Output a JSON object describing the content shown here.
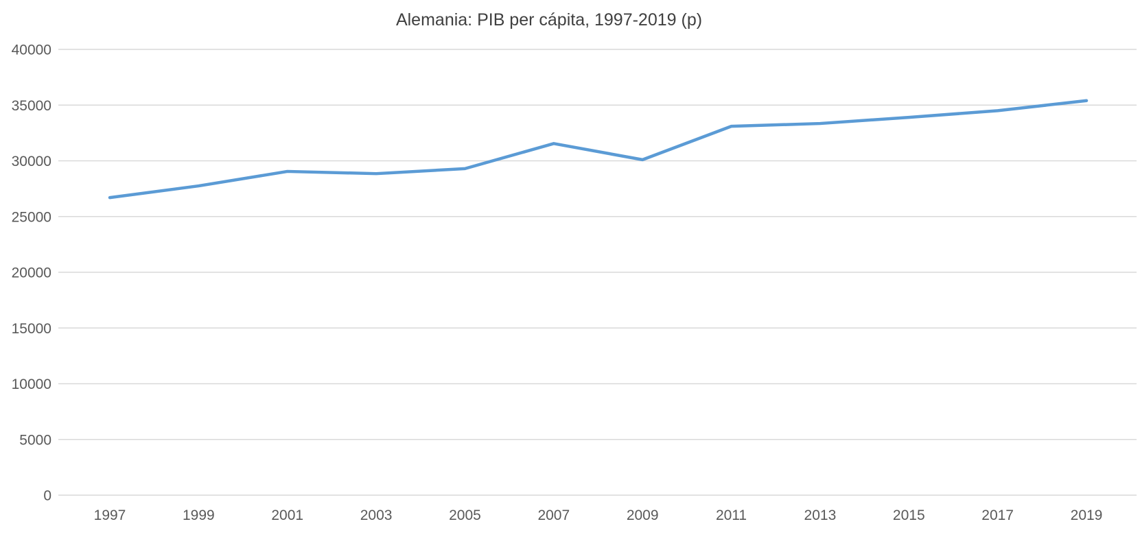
{
  "title": "Alemania: PIB per cápita, 1997-2019 (p)",
  "chart_data": {
    "type": "line",
    "title": "Alemania: PIB per cápita, 1997-2019 (p)",
    "categories": [
      "1997",
      "1999",
      "2001",
      "2003",
      "2005",
      "2007",
      "2009",
      "2011",
      "2013",
      "2015",
      "2017",
      "2019"
    ],
    "values": [
      26700,
      27750,
      29050,
      28850,
      29300,
      31550,
      30100,
      33100,
      33350,
      33900,
      34500,
      35400
    ],
    "xlabel": "",
    "ylabel": "",
    "ylim": [
      0,
      40000
    ],
    "ytick_step": 5000,
    "ytick_labels": [
      "0",
      "5000",
      "10000",
      "15000",
      "20000",
      "25000",
      "30000",
      "35000",
      "40000"
    ],
    "grid": true,
    "legend": "none",
    "line_color": "#5B9BD5",
    "gridline_color": "#D9D9D9",
    "title_color": "#404040",
    "tick_label_color": "#595959"
  }
}
